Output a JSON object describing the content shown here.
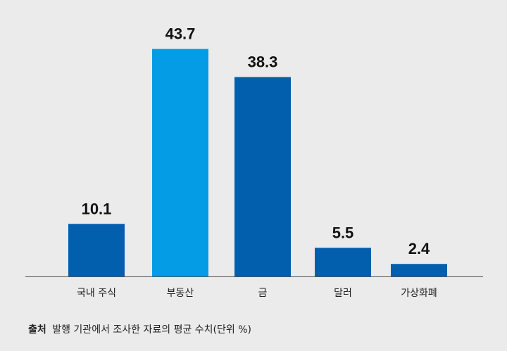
{
  "chart_data": {
    "type": "bar",
    "categories": [
      "국내 주식",
      "부동산",
      "금",
      "달러",
      "가상화폐"
    ],
    "values": [
      10.1,
      43.7,
      38.3,
      5.5,
      2.4
    ],
    "value_labels": [
      "10.1",
      "43.7",
      "38.3",
      "5.5",
      "2.4"
    ],
    "colors": [
      "#015fae",
      "#049ce5",
      "#015fae",
      "#015fae",
      "#015fae"
    ],
    "ylim": [
      0,
      50
    ],
    "grid": false,
    "legend": "none",
    "axis_color": "#555555"
  },
  "source": {
    "label": "출처",
    "text": "발행 기관에서 조사한 자료의 평균 수치(단위 %)"
  }
}
